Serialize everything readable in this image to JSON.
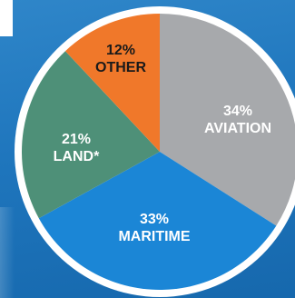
{
  "chart_data": {
    "type": "pie",
    "start_angle_deg": 0,
    "direction": "clockwise",
    "slices": [
      {
        "percent_label": "34%",
        "label": "AVIATION",
        "value": 34,
        "color": "#a7a9ac",
        "text_color": "#ffffff"
      },
      {
        "percent_label": "33%",
        "label": "MARITIME",
        "value": 33,
        "color": "#1b86d6",
        "text_color": "#ffffff"
      },
      {
        "percent_label": "21%",
        "label": "LAND*",
        "value": 21,
        "color": "#4e9078",
        "text_color": "#ffffff"
      },
      {
        "percent_label": "12%",
        "label": "OTHER",
        "value": 12,
        "color": "#f0782a",
        "text_color": "#1a1a1a"
      }
    ]
  }
}
